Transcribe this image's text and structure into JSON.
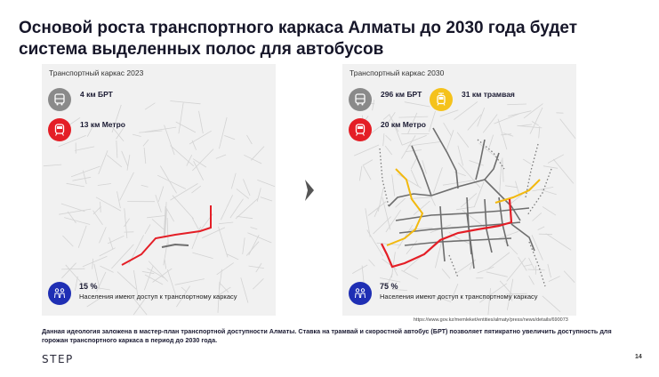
{
  "slide": {
    "title": "Основой роста транспортного каркаса Алматы до 2030 года будет система выделенных полос для автобусов",
    "page_number": "14",
    "logo_text": "STEP",
    "source": "https://www.gov.kz/memleket/entities/almaty/press/news/details/690073",
    "caption": "Данная идеология заложена в мастер-план транспортной доступности Алматы. Ставка на трамвай и скоростной автобус (БРТ) позволяет пятикратно увеличить доступность для горожан транспортного каркаса в период до 2030 года."
  },
  "left_panel": {
    "label": "Транспортный каркас 2023",
    "bus": {
      "text": "4 км БРТ",
      "icon": "bus-icon",
      "color": "#8a8a8a"
    },
    "metro": {
      "text": "13 км Метро",
      "icon": "metro-train-icon",
      "color": "#e41e26"
    },
    "population": {
      "percent": "15 %",
      "text": "Населения имеют доступ к транспортному каркасу",
      "icon": "people-icon",
      "color": "#1f2fb4"
    }
  },
  "right_panel": {
    "label": "Транспортный каркас 2030",
    "bus": {
      "text": "296 км БРТ",
      "icon": "bus-icon",
      "color": "#8a8a8a"
    },
    "tram": {
      "text": "31 км трамвая",
      "icon": "tram-icon",
      "color": "#f5c21b"
    },
    "metro": {
      "text": "20 км Метро",
      "icon": "metro-train-icon",
      "color": "#e41e26"
    },
    "population": {
      "percent": "75 %",
      "text": "Населения имеют доступ к транспортному каркасу",
      "icon": "people-icon",
      "color": "#1f2fb4"
    }
  },
  "colors": {
    "bus": "#6e6e6e",
    "metro": "#e41e26",
    "tram": "#f2b90f",
    "map_bg": "#f1f1f1",
    "streets": "#cfcfcf"
  }
}
